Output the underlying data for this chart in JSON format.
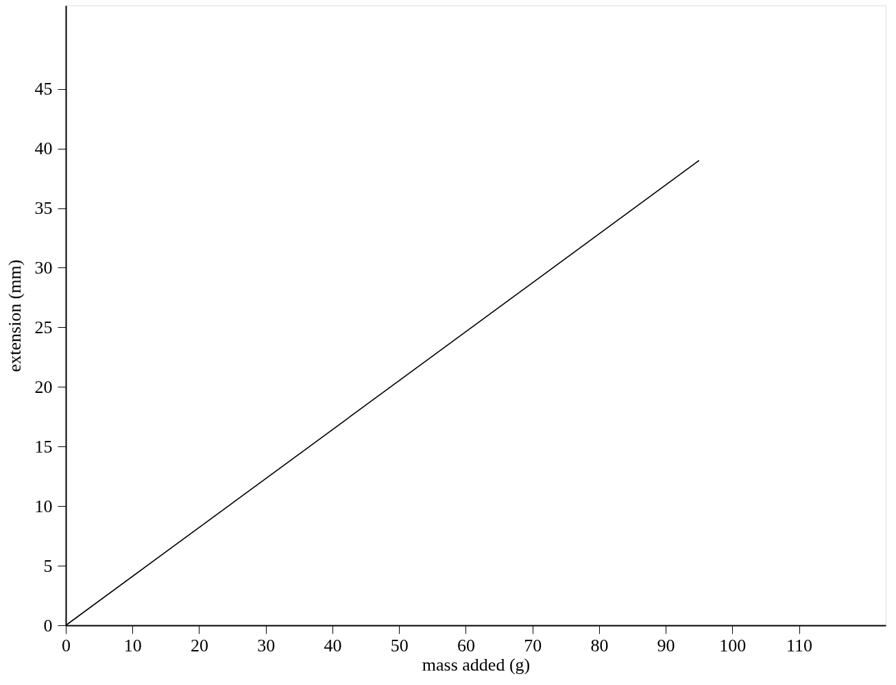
{
  "chart_data": {
    "type": "line",
    "xlabel": "mass added (g)",
    "ylabel": "extension (mm)",
    "x": [
      0,
      95
    ],
    "series": [
      {
        "color": "#000000",
        "values": [
          0,
          39
        ]
      }
    ],
    "xlim": [
      0,
      123
    ],
    "ylim": [
      0,
      52
    ],
    "xticks": [
      0,
      10,
      20,
      30,
      40,
      50,
      60,
      70,
      80,
      90,
      100,
      110
    ],
    "yticks": [
      0,
      5,
      10,
      15,
      20,
      25,
      30,
      35,
      40,
      45
    ],
    "grid": false,
    "marker": "none",
    "line_style": "solid"
  }
}
